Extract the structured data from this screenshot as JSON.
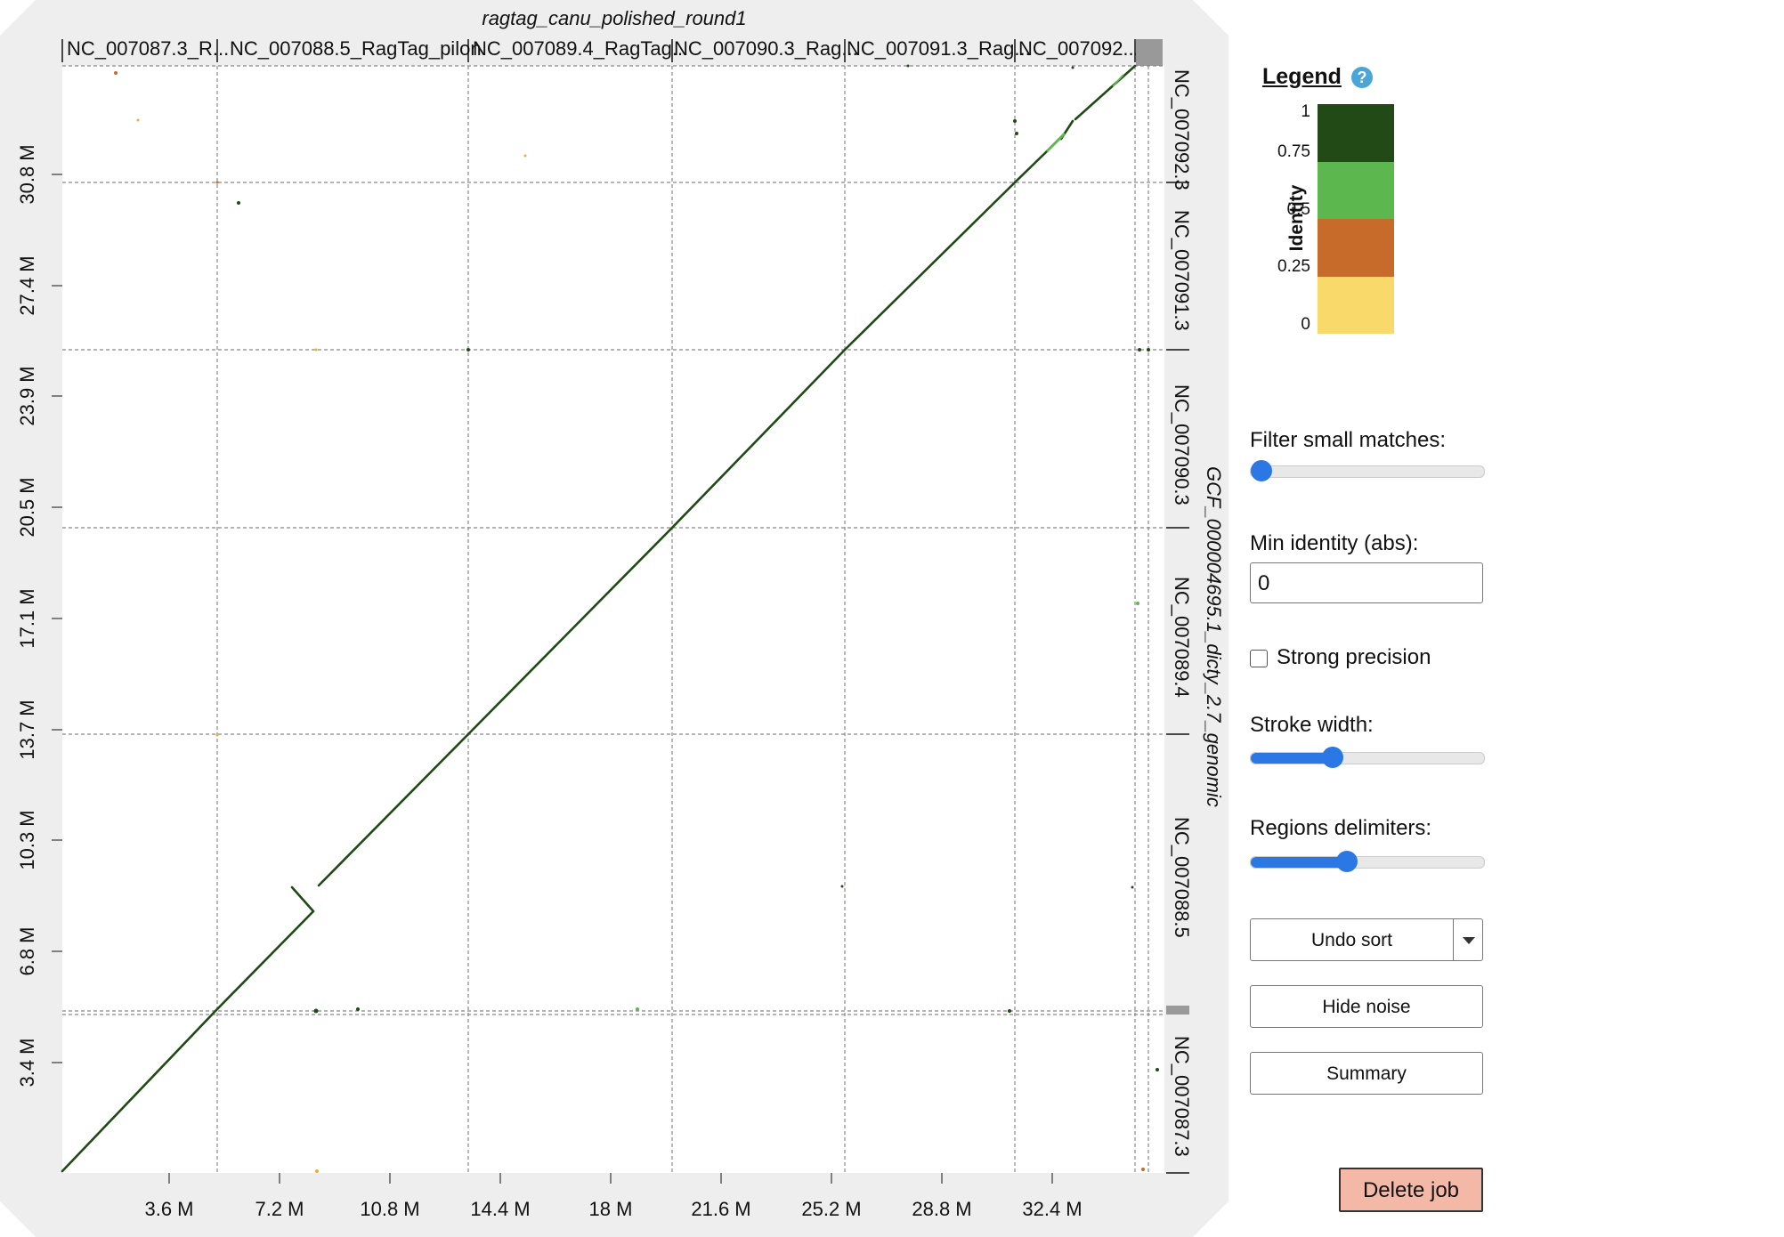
{
  "plot": {
    "title": "ragtag_canu_polished_round1",
    "y_axis_title": "GCF_000004695.1_dicty_2.7_genomic",
    "top_contigs": [
      "NC_007087.3_R...",
      "NC_007088.5_RagTag_pilon",
      "NC_007089.4_RagTag...",
      "NC_007090.3_Rag...",
      "NC_007091.3_Rag...",
      "NC_007092...."
    ],
    "right_contigs": [
      "NC_007092.3",
      "NC_007091.3",
      "NC_007090.3",
      "NC_007089.4",
      "NC_007088.5",
      "NC_007087.3"
    ],
    "x_ticks": [
      "3.6 M",
      "7.2 M",
      "10.8 M",
      "14.4 M",
      "18 M",
      "21.6 M",
      "25.2 M",
      "28.8 M",
      "32.4 M"
    ],
    "y_ticks": [
      "3.4 M",
      "6.8 M",
      "10.3 M",
      "13.7 M",
      "17.1 M",
      "20.5 M",
      "23.9 M",
      "27.4 M",
      "30.8 M"
    ],
    "colors": {
      "frame": "#eeeeee",
      "line": "#1f4a16",
      "light_line": "#5cb84e",
      "grid": "#888888"
    }
  },
  "legend": {
    "title": "Legend",
    "help_icon": "question-icon",
    "axis_label": "Identity",
    "ticks": [
      "1",
      "0.75",
      "0.5",
      "0.25",
      "0"
    ],
    "colors": [
      "#214a16",
      "#5cb84e",
      "#c76b2b",
      "#f8d96a"
    ]
  },
  "controls": {
    "filter_label": "Filter small matches:",
    "filter_value": 0,
    "min_identity_label": "Min identity (abs):",
    "min_identity_value": "0",
    "strong_precision_label": "Strong precision",
    "strong_precision_checked": false,
    "stroke_width_label": "Stroke width:",
    "stroke_width_value": 0.35,
    "regions_label": "Regions delimiters:",
    "regions_value": 0.42,
    "undo_sort": "Undo sort",
    "hide_noise": "Hide noise",
    "summary": "Summary",
    "delete_job": "Delete job"
  }
}
